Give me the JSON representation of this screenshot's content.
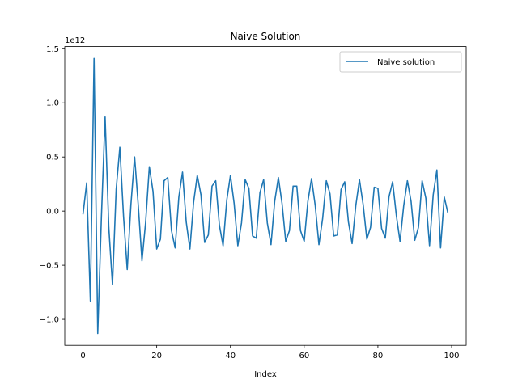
{
  "chart_data": {
    "type": "line",
    "title": "Naive Solution",
    "xlabel": "Index",
    "ylabel": "",
    "y_offset_label": "1e12",
    "xlim": [
      -4.95,
      103.95
    ],
    "ylim": [
      -1240000000000.0,
      1520000000000.0
    ],
    "xticks": [
      0,
      20,
      40,
      60,
      80,
      100
    ],
    "xtick_labels": [
      "0",
      "20",
      "40",
      "60",
      "80",
      "100"
    ],
    "yticks": [
      -1.0,
      -0.5,
      0.0,
      0.5,
      1.0,
      1.5
    ],
    "ytick_labels": [
      "−1.0",
      "−0.5",
      "0.0",
      "0.5",
      "1.0",
      "1.5"
    ],
    "grid": false,
    "legend_position": "top-right",
    "series": [
      {
        "name": "Naive solution",
        "color": "#1f77b4",
        "x": [
          0,
          1,
          2,
          3,
          4,
          5,
          6,
          7,
          8,
          9,
          10,
          11,
          12,
          13,
          14,
          15,
          16,
          17,
          18,
          19,
          20,
          21,
          22,
          23,
          24,
          25,
          26,
          27,
          28,
          29,
          30,
          31,
          32,
          33,
          34,
          35,
          36,
          37,
          38,
          39,
          40,
          41,
          42,
          43,
          44,
          45,
          46,
          47,
          48,
          49,
          50,
          51,
          52,
          53,
          54,
          55,
          56,
          57,
          58,
          59,
          60,
          61,
          62,
          63,
          64,
          65,
          66,
          67,
          68,
          69,
          70,
          71,
          72,
          73,
          74,
          75,
          76,
          77,
          78,
          79,
          80,
          81,
          82,
          83,
          84,
          85,
          86,
          87,
          88,
          89,
          90,
          91,
          92,
          93,
          94,
          95,
          96,
          97,
          98,
          99
        ],
        "y": [
          -0.03,
          0.26,
          -0.83,
          1.41,
          -1.13,
          -0.05,
          0.87,
          -0.15,
          -0.68,
          0.2,
          0.59,
          -0.05,
          -0.54,
          0.06,
          0.5,
          0.05,
          -0.46,
          -0.1,
          0.41,
          0.18,
          -0.35,
          -0.26,
          0.28,
          0.31,
          -0.18,
          -0.34,
          0.13,
          0.36,
          -0.1,
          -0.35,
          0.08,
          0.33,
          0.15,
          -0.29,
          -0.22,
          0.23,
          0.28,
          -0.13,
          -0.32,
          0.1,
          0.33,
          0.07,
          -0.32,
          -0.11,
          0.29,
          0.21,
          -0.23,
          -0.25,
          0.17,
          0.29,
          -0.11,
          -0.31,
          0.09,
          0.31,
          0.07,
          -0.28,
          -0.18,
          0.23,
          0.23,
          -0.18,
          -0.28,
          0.09,
          0.3,
          0.05,
          -0.31,
          -0.07,
          0.28,
          0.16,
          -0.23,
          -0.22,
          0.2,
          0.27,
          -0.1,
          -0.3,
          0.05,
          0.29,
          0.06,
          -0.26,
          -0.15,
          0.22,
          0.21,
          -0.16,
          -0.25,
          0.13,
          0.27,
          -0.04,
          -0.28,
          0.05,
          0.28,
          0.09,
          -0.27,
          -0.15,
          0.28,
          0.12,
          -0.32,
          0.15,
          0.38,
          -0.34,
          0.13,
          -0.02
        ]
      }
    ]
  }
}
